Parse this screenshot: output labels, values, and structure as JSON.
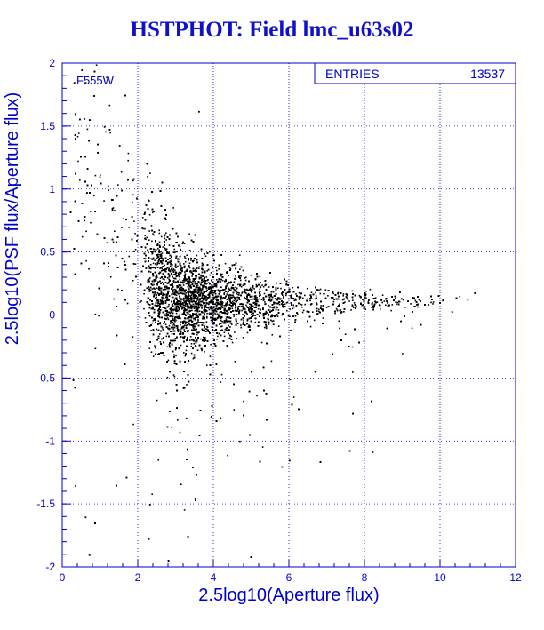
{
  "title": "HSTPHOT: Field lmc_u63s02",
  "colors": {
    "axis": "#0000cc",
    "points": "#000000",
    "zero_line": "#cc0000",
    "title": "#1010cc"
  },
  "stats_box": {
    "label": "ENTRIES",
    "value": "13537"
  },
  "chart_data": {
    "type": "scatter",
    "title": "HSTPHOT: Field lmc_u63s02",
    "xlabel": "2.5log10(Aperture flux)",
    "ylabel": "2.5log10(PSF flux/Aperture flux)",
    "annotation": "F555W",
    "xlim": [
      0,
      12
    ],
    "ylim": [
      -2,
      2
    ],
    "x_ticks": [
      "0",
      "2",
      "4",
      "6",
      "8",
      "10",
      "12"
    ],
    "y_ticks": [
      "-2",
      "-1.5",
      "-1",
      "-0.5",
      "0",
      "0.5",
      "1",
      "1.5",
      "2"
    ],
    "grid": true,
    "zero_line": 0,
    "entries": 13537,
    "trend": {
      "x": [
        1,
        1.5,
        2,
        2.5,
        3,
        3.5,
        4,
        5,
        6,
        7,
        8,
        9,
        10,
        10.8
      ],
      "y_median": [
        1.0,
        0.8,
        0.45,
        0.25,
        0.15,
        0.13,
        0.12,
        0.11,
        0.11,
        0.11,
        0.11,
        0.11,
        0.12,
        0.13
      ],
      "y_spread": [
        0.5,
        0.4,
        0.32,
        0.28,
        0.22,
        0.18,
        0.14,
        0.11,
        0.08,
        0.06,
        0.04,
        0.03,
        0.025,
        0.02
      ]
    },
    "sample_points": [
      {
        "x": 0.3,
        "y": 1.85
      },
      {
        "x": 0.5,
        "y": 1.95
      },
      {
        "x": 0.6,
        "y": 1.85
      },
      {
        "x": 1.1,
        "y": 1.5
      },
      {
        "x": 1.5,
        "y": 1.35
      },
      {
        "x": 3.6,
        "y": 1.62
      },
      {
        "x": 0.7,
        "y": -1.9
      },
      {
        "x": 0.6,
        "y": -1.6
      },
      {
        "x": 2.3,
        "y": -1.5
      },
      {
        "x": 3.5,
        "y": -1.45
      },
      {
        "x": 5.8,
        "y": -1.2
      },
      {
        "x": 6.0,
        "y": -1.15
      },
      {
        "x": 10.3,
        "y": 0.03
      },
      {
        "x": 10.9,
        "y": 0.18
      }
    ]
  }
}
